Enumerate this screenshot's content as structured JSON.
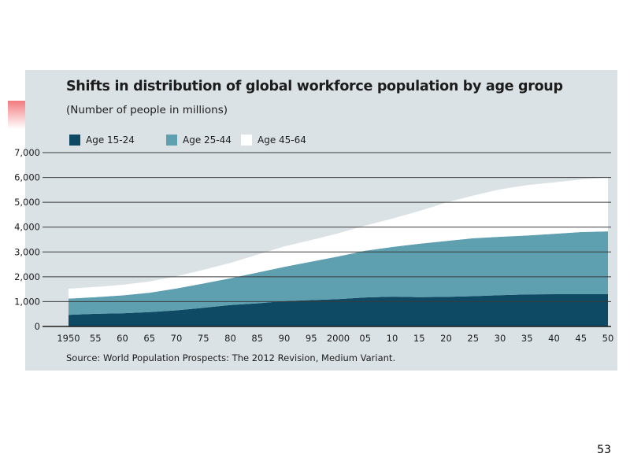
{
  "slide": {
    "page_number": "53"
  },
  "colors": {
    "panel_bg": "#dbe2e6",
    "gridline": "#3a3a3a",
    "age_15_24": "#0e4a64",
    "age_25_44": "#5fa0b0",
    "age_45_64": "#ffffff",
    "accent_red": "#e30613"
  },
  "chart_data": {
    "type": "area",
    "stacked": true,
    "title": "Shifts in distribution of global workforce population by age group",
    "subtitle": "(Number of people in millions)",
    "source": "Source: World Population Prospects: The 2012 Revision, Medium Variant.",
    "xlabel": "",
    "ylabel": "",
    "x": [
      1950,
      1955,
      1960,
      1965,
      1970,
      1975,
      1980,
      1985,
      1990,
      1995,
      2000,
      2005,
      2010,
      2015,
      2020,
      2025,
      2030,
      2035,
      2040,
      2045,
      2050
    ],
    "x_tick_labels": [
      "1950",
      "55",
      "60",
      "65",
      "70",
      "75",
      "80",
      "85",
      "90",
      "95",
      "2000",
      "05",
      "10",
      "15",
      "20",
      "25",
      "30",
      "35",
      "40",
      "45",
      "50"
    ],
    "ylim": [
      0,
      7000
    ],
    "y_ticks": [
      0,
      1000,
      2000,
      3000,
      4000,
      5000,
      6000,
      7000
    ],
    "y_tick_labels": [
      "0",
      "1,000",
      "2,000",
      "3,000",
      "4,000",
      "5,000",
      "6,000",
      "7,000"
    ],
    "grid": true,
    "legend_position": "top-left",
    "series": [
      {
        "name": "Age 15-24",
        "color": "#0e4a64",
        "values": [
          470,
          510,
          530,
          580,
          650,
          750,
          860,
          930,
          1020,
          1060,
          1100,
          1170,
          1200,
          1180,
          1190,
          1220,
          1260,
          1290,
          1300,
          1300,
          1300
        ]
      },
      {
        "name": "Age 25-44",
        "color": "#5fa0b0",
        "values": [
          650,
          670,
          720,
          780,
          880,
          980,
          1080,
          1240,
          1380,
          1550,
          1720,
          1880,
          2000,
          2150,
          2250,
          2330,
          2350,
          2370,
          2430,
          2500,
          2530
        ]
      },
      {
        "name": "Age 45-64",
        "color": "#ffffff",
        "values": [
          400,
          410,
          430,
          450,
          490,
          550,
          620,
          720,
          820,
          870,
          930,
          1010,
          1140,
          1320,
          1550,
          1720,
          1910,
          2030,
          2070,
          2120,
          2170
        ]
      }
    ]
  }
}
